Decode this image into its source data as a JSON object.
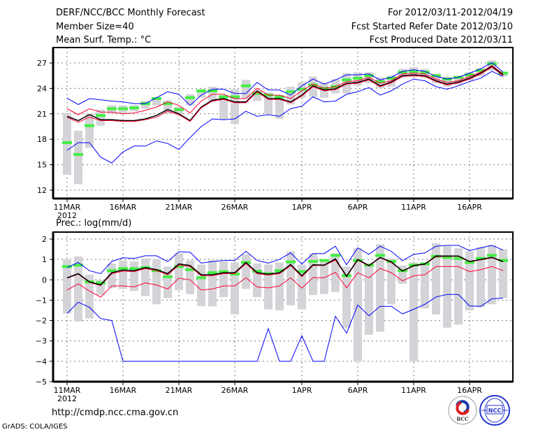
{
  "header": {
    "title": "DERF/NCC/BCC Monthly Forecast",
    "member_size": "Member Size=40",
    "variable": "Mean Surf. Temp.: °C",
    "for_range": "For 2012/03/11-2012/04/19",
    "started": "Fcst Started Refer Date 2012/03/10",
    "produced": "Fcst Produced Date 2012/03/11"
  },
  "footer": {
    "url": "http://cmdp.ncc.cma.gov.cn",
    "grads": "GrADS: COLA/IGES",
    "logo_bcc": "BCC",
    "logo_ncc": "NCC"
  },
  "colors": {
    "max_min": "#0000ff",
    "spread": "#ff0033",
    "mean": "#000000",
    "bar": "#d4d4d8",
    "marker": "#44ee44"
  },
  "chart_data": [
    {
      "type": "line",
      "title": "Mean Surf. Temp.: °C",
      "ylim": [
        11,
        28.5
      ],
      "yticks": [
        12,
        15,
        18,
        21,
        24,
        27
      ],
      "x_tick_labels": [
        "11MAR",
        "16MAR",
        "21MAR",
        "26MAR",
        "1APR",
        "6APR",
        "11APR",
        "16APR"
      ],
      "x_tick_days": [
        0,
        5,
        10,
        15,
        21,
        26,
        31,
        36
      ],
      "x_year_label": "2012",
      "grid": true,
      "series": [
        {
          "name": "max",
          "values": [
            22.85,
            22.1,
            22.8,
            22.65,
            22.5,
            22.4,
            22.2,
            22.2,
            22.9,
            23.6,
            23.3,
            22.0,
            23.2,
            23.9,
            23.9,
            23.4,
            23.4,
            24.7,
            23.8,
            23.8,
            23.2,
            24.3,
            25.1,
            24.5,
            25.0,
            25.6,
            25.6,
            25.7,
            25.0,
            25.3,
            26.0,
            26.2,
            26.0,
            25.4,
            25.1,
            25.3,
            25.8,
            26.3,
            27.05,
            25.9
          ]
        },
        {
          "name": "upper",
          "values": [
            21.6,
            20.9,
            21.6,
            21.2,
            21.2,
            21.0,
            21.1,
            21.4,
            21.8,
            22.4,
            22.0,
            21.1,
            22.5,
            23.3,
            23.3,
            22.8,
            22.8,
            24.0,
            23.2,
            23.2,
            22.8,
            23.7,
            24.5,
            24.0,
            24.2,
            24.8,
            24.9,
            25.3,
            24.6,
            24.9,
            25.7,
            25.8,
            25.7,
            25.1,
            24.7,
            24.9,
            25.4,
            25.9,
            26.7,
            25.7
          ]
        },
        {
          "name": "mean",
          "values": [
            20.7,
            20.2,
            20.9,
            20.3,
            20.3,
            20.2,
            20.2,
            20.4,
            20.8,
            21.5,
            21.0,
            20.2,
            21.8,
            22.6,
            22.8,
            22.4,
            22.4,
            23.7,
            22.8,
            22.8,
            22.4,
            23.2,
            24.3,
            23.8,
            23.95,
            24.6,
            24.7,
            25.1,
            24.3,
            24.75,
            25.5,
            25.6,
            25.5,
            24.9,
            24.5,
            24.75,
            25.2,
            25.8,
            26.6,
            25.6
          ]
        },
        {
          "name": "lower",
          "values": [
            20.6,
            20.0,
            20.6,
            20.2,
            20.2,
            20.1,
            20.1,
            20.3,
            20.6,
            21.3,
            20.9,
            20.1,
            21.7,
            22.5,
            22.7,
            22.3,
            22.3,
            23.6,
            22.7,
            22.7,
            22.3,
            23.1,
            24.2,
            23.7,
            23.85,
            24.5,
            24.6,
            25.0,
            24.2,
            24.65,
            25.4,
            25.5,
            25.4,
            24.8,
            24.4,
            24.65,
            25.1,
            25.7,
            26.5,
            25.5
          ]
        },
        {
          "name": "min",
          "values": [
            16.7,
            17.6,
            17.6,
            15.9,
            15.2,
            16.5,
            17.2,
            17.2,
            17.8,
            17.5,
            16.8,
            18.2,
            19.5,
            20.4,
            20.3,
            20.4,
            21.3,
            20.7,
            20.9,
            20.7,
            21.6,
            21.9,
            23.0,
            22.4,
            22.5,
            23.3,
            23.6,
            24.1,
            23.2,
            23.7,
            24.5,
            25.1,
            24.9,
            24.2,
            23.9,
            24.3,
            24.8,
            25.2,
            26.0,
            25.4
          ]
        }
      ],
      "bars": {
        "low": [
          13.8,
          12.7,
          17.0,
          19.6,
          21.0,
          21.0,
          21.3,
          21.6,
          22.0,
          21.0,
          20.9,
          22.0,
          22.9,
          22.4,
          20.3,
          19.8,
          22.8,
          22.5,
          21.0,
          20.4,
          22.1,
          22.9,
          23.0,
          22.9,
          23.4,
          23.4,
          24.3,
          24.6,
          24.0,
          24.2,
          25.3,
          25.3,
          25.2,
          24.6,
          24.2,
          24.4,
          24.9,
          25.4,
          26.1,
          25.4
        ],
        "high": [
          21.1,
          19.0,
          21.0,
          21.5,
          22.0,
          22.0,
          22.0,
          22.5,
          22.9,
          22.6,
          21.8,
          23.3,
          23.9,
          24.2,
          23.2,
          23.9,
          25.0,
          23.7,
          23.5,
          23.2,
          24.2,
          24.7,
          25.4,
          24.6,
          25.1,
          25.8,
          25.9,
          25.9,
          25.3,
          25.5,
          26.3,
          26.5,
          26.3,
          25.7,
          25.4,
          25.5,
          25.9,
          26.4,
          27.3,
          25.9
        ],
        "marker": [
          17.6,
          16.2,
          19.6,
          20.8,
          21.6,
          21.6,
          21.7,
          22.2,
          22.8,
          22.2,
          21.5,
          22.9,
          23.7,
          23.7,
          23.0,
          23.0,
          24.3,
          23.4,
          23.2,
          23.0,
          23.6,
          23.9,
          24.4,
          24.0,
          24.2,
          25.0,
          25.2,
          25.5,
          24.8,
          25.2,
          25.9,
          26.0,
          25.9,
          25.5,
          25.1,
          25.3,
          25.6,
          26.1,
          26.9,
          25.8
        ]
      }
    },
    {
      "type": "line",
      "title": "Prec.: log(mm/d)",
      "ylim": [
        -5,
        2.3
      ],
      "yticks": [
        -5,
        -4,
        -3,
        -2,
        -1,
        0,
        1,
        2
      ],
      "x_tick_labels": [
        "11MAR",
        "16MAR",
        "21MAR",
        "26MAR",
        "1APR",
        "6APR",
        "11APR",
        "16APR"
      ],
      "x_tick_days": [
        0,
        5,
        10,
        15,
        21,
        26,
        31,
        36
      ],
      "x_year_label": "2012",
      "grid": true,
      "series": [
        {
          "name": "max",
          "values": [
            0.6,
            0.85,
            0.45,
            0.3,
            0.9,
            1.08,
            1.05,
            1.18,
            1.18,
            0.9,
            1.38,
            1.35,
            0.82,
            0.9,
            0.95,
            0.95,
            1.4,
            0.95,
            0.82,
            1.0,
            1.32,
            0.77,
            1.29,
            1.29,
            1.65,
            0.74,
            1.57,
            1.25,
            1.65,
            1.4,
            0.94,
            1.25,
            1.32,
            1.65,
            1.69,
            1.69,
            1.43,
            1.57,
            1.69,
            1.46
          ]
        },
        {
          "name": "upper",
          "values": [
            0.08,
            0.28,
            -0.13,
            -0.28,
            0.3,
            0.42,
            0.4,
            0.55,
            0.45,
            0.25,
            0.72,
            0.65,
            0.2,
            0.2,
            0.3,
            0.3,
            0.8,
            0.3,
            0.23,
            0.3,
            0.7,
            0.15,
            0.7,
            0.7,
            0.97,
            0.15,
            0.97,
            0.68,
            1.08,
            0.85,
            0.42,
            0.68,
            0.76,
            1.14,
            1.15,
            1.15,
            0.88,
            0.98,
            1.08,
            0.88
          ]
        },
        {
          "name": "mean",
          "values": [
            0.1,
            0.3,
            -0.1,
            -0.25,
            0.35,
            0.48,
            0.45,
            0.6,
            0.5,
            0.3,
            0.78,
            0.7,
            0.25,
            0.25,
            0.35,
            0.35,
            0.85,
            0.35,
            0.28,
            0.35,
            0.75,
            0.2,
            0.74,
            0.72,
            1.03,
            0.17,
            1.0,
            0.7,
            1.1,
            0.88,
            0.43,
            0.7,
            0.78,
            1.17,
            1.17,
            1.17,
            0.9,
            1.0,
            1.1,
            0.9
          ]
        },
        {
          "name": "lower",
          "values": [
            -0.5,
            -0.2,
            -0.55,
            -0.85,
            -0.3,
            -0.3,
            -0.35,
            -0.15,
            -0.25,
            -0.45,
            0.08,
            0.0,
            -0.5,
            -0.45,
            -0.3,
            -0.3,
            0.1,
            -0.35,
            -0.4,
            -0.3,
            0.1,
            -0.41,
            0.11,
            0.1,
            0.37,
            -0.4,
            0.35,
            0.1,
            0.56,
            0.35,
            -0.05,
            0.2,
            0.25,
            0.65,
            0.65,
            0.65,
            0.4,
            0.5,
            0.65,
            0.45
          ]
        },
        {
          "name": "min",
          "values": [
            -1.65,
            -1.1,
            -1.35,
            -1.9,
            -2.0,
            -4,
            -4,
            -4,
            -4,
            -4,
            -4,
            -4,
            -4,
            -4,
            -4,
            -4,
            -4,
            -4,
            -2.4,
            -4,
            -4,
            -2.75,
            -4,
            -4,
            -1.79,
            -2.62,
            -1.24,
            -1.76,
            -1.3,
            -1.3,
            -1.67,
            -1.45,
            -1.2,
            -0.84,
            -0.72,
            -0.72,
            -1.28,
            -1.3,
            -0.93,
            -0.9
          ]
        }
      ],
      "bars": {
        "low": [
          -1.65,
          -2.05,
          -1.9,
          -0.75,
          -0.4,
          -0.45,
          -0.55,
          -0.8,
          -1.2,
          -0.9,
          -0.5,
          -0.7,
          -1.3,
          -1.3,
          -0.85,
          -1.7,
          -0.45,
          -0.85,
          -1.45,
          -1.5,
          -1.25,
          -1.45,
          -0.75,
          -0.7,
          -0.6,
          -2.35,
          -4.0,
          -2.7,
          -2.55,
          -1.2,
          -0.2,
          -4.0,
          -1.4,
          -1.7,
          -2.35,
          -2.2,
          -1.5,
          -1.35,
          -1.2,
          -0.9
        ],
        "high": [
          1.0,
          1.15,
          0.25,
          0.0,
          0.8,
          0.95,
          0.9,
          1.05,
          1.0,
          0.65,
          1.3,
          0.95,
          0.75,
          0.95,
          0.9,
          0.85,
          1.25,
          0.8,
          0.75,
          0.85,
          1.4,
          0.75,
          1.3,
          1.0,
          1.3,
          0.65,
          1.55,
          0.75,
          1.75,
          1.05,
          0.7,
          0.85,
          0.85,
          1.8,
          1.65,
          1.55,
          1.4,
          1.6,
          1.7,
          1.5
        ],
        "marker": [
          0.65,
          0.72,
          -0.1,
          -0.15,
          0.45,
          0.55,
          0.55,
          0.6,
          0.45,
          0.15,
          0.65,
          0.5,
          0.1,
          0.35,
          0.4,
          0.28,
          0.85,
          0.42,
          0.3,
          0.45,
          0.88,
          0.4,
          0.9,
          0.95,
          1.2,
          0.2,
          0.95,
          0.72,
          1.2,
          0.9,
          0.45,
          0.72,
          0.78,
          1.15,
          1.1,
          1.05,
          0.85,
          1.05,
          1.2,
          0.95
        ]
      }
    }
  ]
}
